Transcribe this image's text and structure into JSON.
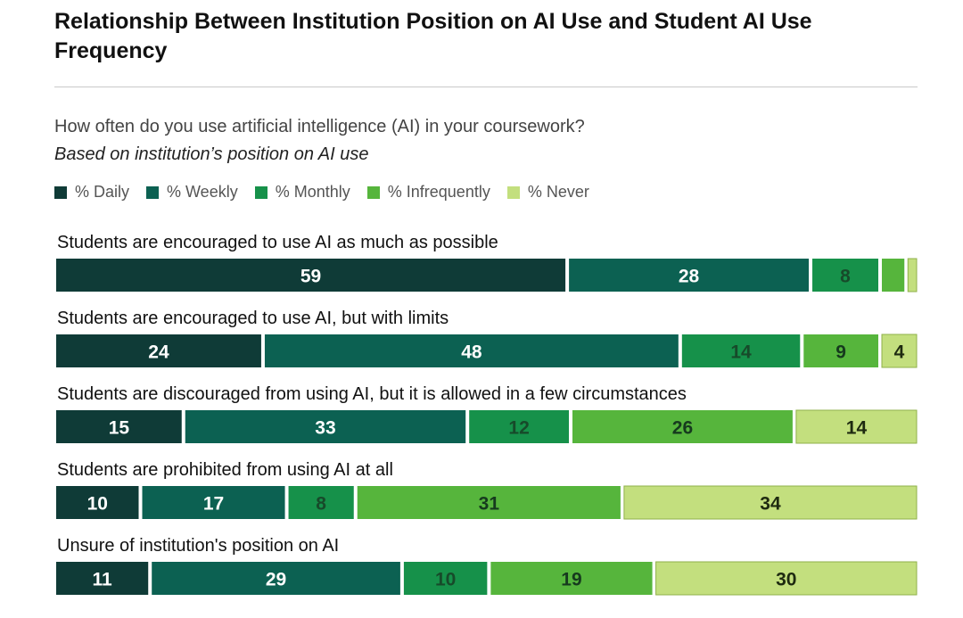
{
  "chart_data": {
    "type": "bar",
    "orientation": "horizontal",
    "stacked": true,
    "normalized": true,
    "title": "Relationship Between Institution Position on AI Use and Student AI Use Frequency",
    "question": "How often do you use artificial intelligence (AI) in your coursework?",
    "subtitle": "Based on institution’s position on AI use",
    "legend_position": "top-left",
    "categories": [
      "Students are encouraged to use AI as much as possible",
      "Students are encouraged to use AI, but with limits",
      "Students are discouraged from using AI, but it is allowed in a few circumstances",
      "Students are prohibited from using AI at all",
      "Unsure of institution's position on AI"
    ],
    "series": [
      {
        "name": "% Daily",
        "color": "#0f3b37",
        "label_color": "#ffffff",
        "values": [
          59,
          24,
          15,
          10,
          11
        ],
        "labels": [
          "59",
          "24",
          "15",
          "10",
          "11"
        ]
      },
      {
        "name": "% Weekly",
        "color": "#0c6152",
        "label_color": "#ffffff",
        "values": [
          28,
          48,
          33,
          17,
          29
        ],
        "labels": [
          "28",
          "48",
          "33",
          "17",
          "29"
        ]
      },
      {
        "name": "% Monthly",
        "color": "#16914a",
        "label_color": "#174a2a",
        "values": [
          8,
          14,
          12,
          8,
          10
        ],
        "labels": [
          "8",
          "14",
          "12",
          "8",
          "10"
        ]
      },
      {
        "name": "% Infrequently",
        "color": "#56b53c",
        "label_color": "#163a1e",
        "values": [
          3,
          9,
          26,
          31,
          19
        ],
        "labels": [
          "",
          "9",
          "26",
          "31",
          "19"
        ]
      },
      {
        "name": "% Never",
        "color": "#c3df7e",
        "label_color": "#1e2a10",
        "values": [
          1,
          4,
          14,
          34,
          30
        ],
        "labels": [
          "",
          "4",
          "14",
          "34",
          "30"
        ]
      }
    ]
  }
}
